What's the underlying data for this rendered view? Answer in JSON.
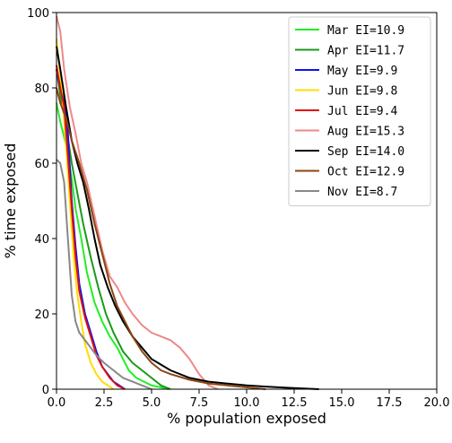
{
  "chart_data": {
    "type": "line",
    "xlabel": "% population exposed",
    "ylabel": "% time exposed",
    "xlim": [
      0,
      20
    ],
    "ylim": [
      0,
      100
    ],
    "xticks": [
      0,
      2.5,
      5,
      7.5,
      10,
      12.5,
      15,
      17.5,
      20
    ],
    "xtick_labels": [
      "0.0",
      "2.5",
      "5.0",
      "7.5",
      "10.0",
      "12.5",
      "15.0",
      "17.5",
      "20.0"
    ],
    "yticks": [
      0,
      20,
      40,
      60,
      80,
      100
    ],
    "ytick_labels": [
      "0",
      "20",
      "40",
      "60",
      "80",
      "100"
    ],
    "grid": false,
    "legend_position": "top-right",
    "series": [
      {
        "name": "Mar EI=10.9",
        "color": "#22ee22",
        "x": [
          0,
          0.2,
          0.5,
          0.8,
          1.0,
          1.3,
          1.6,
          2.0,
          2.4,
          2.8,
          3.2,
          3.5,
          3.8,
          4.2,
          4.6,
          5.0,
          5.5,
          5.9
        ],
        "y": [
          76,
          71,
          65,
          56,
          48,
          40,
          31,
          23,
          18,
          14,
          11,
          8,
          5,
          3,
          2,
          1,
          0.5,
          0
        ]
      },
      {
        "name": "Apr EI=11.7",
        "color": "#1a9a1a",
        "x": [
          0,
          0.2,
          0.5,
          0.8,
          1.1,
          1.4,
          1.8,
          2.2,
          2.6,
          3.0,
          3.5,
          4.0,
          4.5,
          5.0,
          5.5,
          6.0
        ],
        "y": [
          85,
          78,
          70,
          60,
          52,
          44,
          35,
          27,
          20,
          15,
          10,
          7,
          5,
          3,
          1,
          0
        ]
      },
      {
        "name": "May EI=9.9",
        "color": "#1111ee",
        "x": [
          0,
          0.2,
          0.4,
          0.6,
          0.8,
          1.0,
          1.2,
          1.5,
          1.8,
          2.1,
          2.4,
          2.7,
          3.0,
          3.3,
          3.6
        ],
        "y": [
          85,
          80,
          77,
          68,
          50,
          38,
          28,
          20,
          15,
          10,
          6,
          4,
          2,
          1,
          0
        ]
      },
      {
        "name": "Jun EI=9.8",
        "color": "#ffdd00",
        "x": [
          0,
          0.1,
          0.3,
          0.5,
          0.7,
          0.9,
          1.1,
          1.3,
          1.5,
          1.8,
          2.1,
          2.4,
          2.7,
          3.0
        ],
        "y": [
          93,
          88,
          78,
          65,
          50,
          35,
          25,
          18,
          12,
          7,
          4,
          2,
          1,
          0
        ]
      },
      {
        "name": "Jul EI=9.4",
        "color": "#dd1111",
        "x": [
          0,
          0.2,
          0.4,
          0.6,
          0.8,
          1.0,
          1.2,
          1.5,
          1.8,
          2.1,
          2.4,
          2.8,
          3.2,
          3.6
        ],
        "y": [
          86,
          80,
          75,
          62,
          48,
          35,
          26,
          19,
          14,
          9,
          6,
          3,
          1,
          0
        ]
      },
      {
        "name": "Aug EI=15.3",
        "color": "#ee8888",
        "x": [
          0,
          0.2,
          0.4,
          0.7,
          1.0,
          1.3,
          1.6,
          2.0,
          2.4,
          2.8,
          3.2,
          3.6,
          4.0,
          4.5,
          5.0,
          5.5,
          6.0,
          6.5,
          7.0,
          7.5,
          8.0,
          8.5
        ],
        "y": [
          99,
          95,
          85,
          75,
          68,
          60,
          55,
          46,
          37,
          30,
          27,
          23,
          20,
          17,
          15,
          14,
          13,
          11,
          8,
          4,
          1,
          0
        ]
      },
      {
        "name": "Sep EI=14.0",
        "color": "#000000",
        "x": [
          0,
          0.2,
          0.5,
          0.8,
          1.1,
          1.4,
          1.7,
          2.0,
          2.3,
          2.7,
          3.1,
          3.5,
          4.0,
          4.5,
          5.0,
          6.0,
          7.0,
          8.0,
          9.0,
          10.0,
          11.0,
          12.0,
          13.0,
          13.8
        ],
        "y": [
          91,
          85,
          75,
          66,
          60,
          55,
          48,
          40,
          33,
          27,
          22,
          18,
          14,
          11,
          8,
          5,
          3,
          2,
          1.5,
          1,
          0.7,
          0.4,
          0.2,
          0
        ]
      },
      {
        "name": "Oct EI=12.9",
        "color": "#8b4513",
        "x": [
          0,
          0.2,
          0.5,
          0.8,
          1.2,
          1.6,
          2.0,
          2.4,
          2.8,
          3.2,
          3.6,
          4.0,
          4.5,
          5.0,
          5.5,
          6.0,
          7.0,
          8.0,
          9.0,
          10.0,
          11.0
        ],
        "y": [
          80,
          76,
          72,
          66,
          60,
          53,
          44,
          36,
          28,
          22,
          18,
          14,
          10,
          7,
          5,
          4,
          2.5,
          1.5,
          1,
          0.5,
          0
        ]
      },
      {
        "name": "Nov EI=8.7",
        "color": "#888888",
        "x": [
          0,
          0.2,
          0.4,
          0.6,
          0.8,
          1.0,
          1.2,
          1.5,
          1.8,
          2.1,
          2.5,
          3.0,
          3.5,
          4.0,
          4.5,
          5.0
        ],
        "y": [
          61,
          60,
          55,
          40,
          25,
          18,
          15,
          13,
          11,
          9,
          7,
          5,
          3,
          2,
          1,
          0
        ]
      }
    ]
  }
}
